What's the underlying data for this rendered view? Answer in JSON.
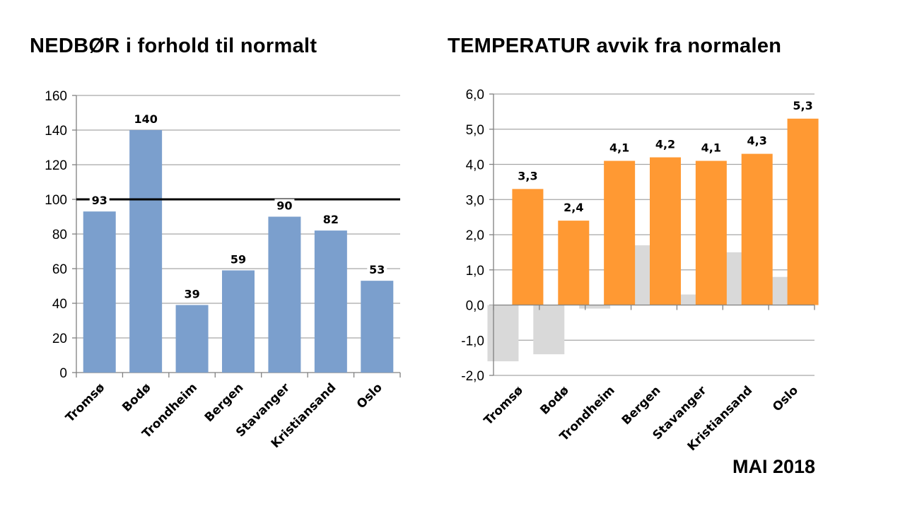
{
  "footer": {
    "label": "MAI 2018"
  },
  "colors": {
    "precip_bar": "#7B9FCD",
    "temp_bar": "#FF9933",
    "prev_bar": "#D9D9D9",
    "gridline": "#A6A6A6",
    "axis": "#808080",
    "reference_line": "#000000"
  },
  "chart_data": [
    {
      "type": "bar",
      "title": "NEDBØR i forhold til normalt",
      "categories": [
        "Tromsø",
        "Bodø",
        "Trondheim",
        "Bergen",
        "Stavanger",
        "Kristiansand",
        "Oslo"
      ],
      "values": [
        93,
        140,
        39,
        59,
        90,
        82,
        53
      ],
      "data_labels": [
        "93",
        "140",
        "39",
        "59",
        "90",
        "82",
        "53"
      ],
      "ylim": [
        0,
        160
      ],
      "yticks": [
        0,
        20,
        40,
        60,
        80,
        100,
        120,
        140,
        160
      ],
      "ytick_labels": [
        "0",
        "20",
        "40",
        "60",
        "80",
        "100",
        "120",
        "140",
        "160"
      ],
      "reference_line": 100,
      "grid": true,
      "legend": "none"
    },
    {
      "type": "bar",
      "title": "TEMPERATUR avvik fra normalen",
      "categories": [
        "Tromsø",
        "Bodø",
        "Trondheim",
        "Bergen",
        "Stavanger",
        "Kristiansand",
        "Oslo"
      ],
      "series": [
        {
          "values": [
            -1.6,
            -1.4,
            -0.1,
            1.7,
            0.3,
            1.5,
            0.8
          ],
          "color": "#D9D9D9"
        },
        {
          "values": [
            3.3,
            2.4,
            4.1,
            4.2,
            4.1,
            4.3,
            5.3
          ],
          "color": "#FF9933"
        }
      ],
      "data_labels": [
        "3,3",
        "2,4",
        "4,1",
        "4,2",
        "4,1",
        "4,3",
        "5,3"
      ],
      "ylim": [
        -2.0,
        6.0
      ],
      "yticks": [
        -2,
        -1,
        0,
        1,
        2,
        3,
        4,
        5,
        6
      ],
      "ytick_labels": [
        "-2,0",
        "-1,0",
        "0,0",
        "1,0",
        "2,0",
        "3,0",
        "4,0",
        "5,0",
        "6,0"
      ],
      "grid": true,
      "legend": "none"
    }
  ]
}
